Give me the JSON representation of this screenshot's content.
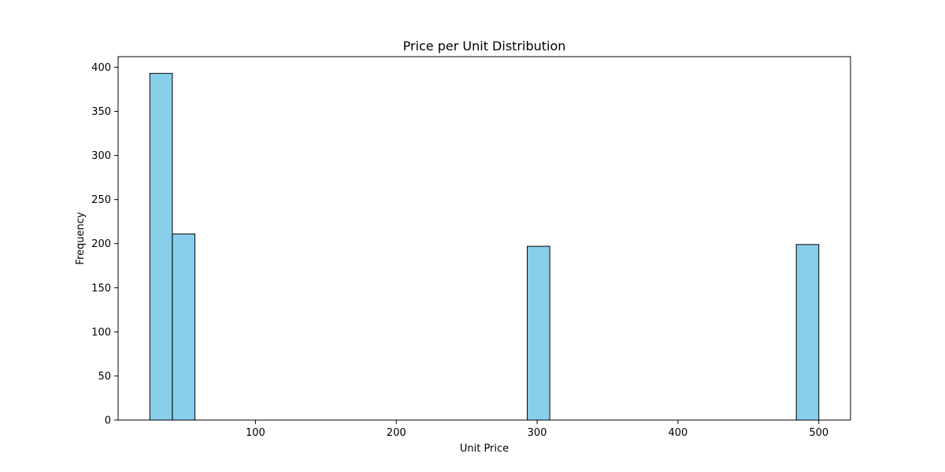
{
  "chart_data": {
    "type": "bar",
    "title": "Price per Unit Distribution",
    "xlabel": "Unit Price",
    "ylabel": "Frequency",
    "xlim": [
      2.5,
      522.5
    ],
    "ylim": [
      0,
      412
    ],
    "x_ticks": [
      100,
      200,
      300,
      400,
      500
    ],
    "y_ticks": [
      0,
      50,
      100,
      150,
      200,
      250,
      300,
      350,
      400
    ],
    "bins": [
      {
        "x0": 25,
        "x1": 41,
        "value": 393
      },
      {
        "x0": 41,
        "x1": 57,
        "value": 211
      },
      {
        "x0": 293,
        "x1": 309,
        "value": 197
      },
      {
        "x0": 484,
        "x1": 500,
        "value": 199
      }
    ],
    "grid": false,
    "colors": {
      "bar_fill": "#87ceeb",
      "bar_edge": "#000000"
    }
  }
}
